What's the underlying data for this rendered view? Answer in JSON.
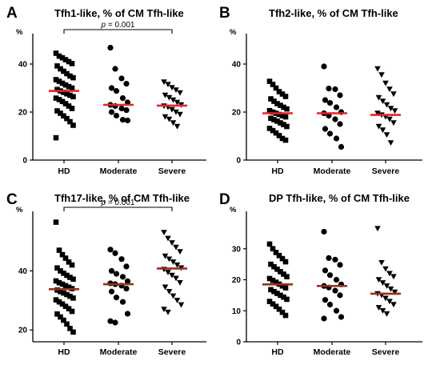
{
  "chart_data": [
    {
      "type": "scatter",
      "panel": "A",
      "title": "Tfh1-like, % of CM Tfh-like",
      "unit": "%",
      "ylim": [
        0,
        50
      ],
      "yticks": [
        "0",
        "20",
        "40"
      ],
      "categories": [
        "HD",
        "Moderate",
        "Severe"
      ],
      "median_color": "#e8242a",
      "significance": {
        "from": "HD",
        "to": "Severe",
        "label_p": "p",
        "label_rest": " = 0.001"
      },
      "series": [
        {
          "category": "HD",
          "marker": "square",
          "median": 28.8,
          "values": [
            44.5,
            43.3,
            42.6,
            41.8,
            41.0,
            40.2,
            39.2,
            38.0,
            37.0,
            36.0,
            35.0,
            34.3,
            33.5,
            32.8,
            32.0,
            31.3,
            30.6,
            30.0,
            29.4,
            28.8,
            28.2,
            27.6,
            27.0,
            26.4,
            25.8,
            25.2,
            24.4,
            23.5,
            22.5,
            21.5,
            20.5,
            19.5,
            18.4,
            17.3,
            16.0,
            14.5,
            9.3
          ]
        },
        {
          "category": "Moderate",
          "marker": "circle",
          "median": 23.0,
          "values": [
            46.8,
            38.0,
            34.0,
            31.8,
            30.0,
            28.8,
            25.8,
            24.0,
            23.0,
            22.5,
            21.5,
            20.8,
            20.0,
            18.5,
            16.8,
            16.5
          ]
        },
        {
          "category": "Severe",
          "marker": "triangle-down",
          "median": 22.7,
          "values": [
            32.5,
            31.5,
            30.2,
            29.2,
            28.0,
            27.0,
            26.0,
            25.0,
            24.0,
            23.0,
            22.5,
            22.0,
            21.0,
            20.0,
            19.0,
            18.0,
            17.0,
            15.5,
            14.0
          ]
        }
      ]
    },
    {
      "type": "scatter",
      "panel": "B",
      "title": "Tfh2-like, % of CM Tfh-like",
      "unit": "%",
      "ylim": [
        0,
        50
      ],
      "yticks": [
        "0",
        "20",
        "40"
      ],
      "categories": [
        "HD",
        "Moderate",
        "Severe"
      ],
      "median_color": "#e8242a",
      "series": [
        {
          "category": "HD",
          "marker": "square",
          "median": 19.5,
          "values": [
            32.8,
            31.5,
            30.0,
            28.5,
            27.5,
            26.5,
            25.5,
            24.5,
            23.5,
            22.8,
            22.0,
            21.3,
            20.6,
            20.0,
            19.5,
            19.0,
            18.5,
            18.0,
            17.4,
            16.8,
            16.2,
            15.5,
            14.8,
            14.0,
            13.2,
            12.3,
            11.3,
            10.2,
            9.0,
            8.3
          ]
        },
        {
          "category": "Moderate",
          "marker": "circle",
          "median": 19.5,
          "values": [
            39.0,
            29.8,
            29.5,
            27.0,
            25.0,
            23.8,
            22.0,
            20.0,
            19.5,
            18.5,
            17.0,
            15.0,
            13.0,
            11.0,
            9.0,
            5.5
          ]
        },
        {
          "category": "Severe",
          "marker": "triangle-down",
          "median": 18.8,
          "values": [
            38.0,
            35.5,
            32.0,
            29.5,
            27.5,
            26.0,
            24.5,
            23.0,
            21.5,
            20.5,
            19.5,
            18.8,
            18.0,
            17.0,
            15.5,
            14.0,
            12.5,
            10.5,
            7.2
          ]
        }
      ]
    },
    {
      "type": "scatter",
      "panel": "C",
      "title": "Tfh17-like, % of CM Tfh-like",
      "unit": "%",
      "ylim": [
        16,
        58
      ],
      "yticks": [
        "20",
        "40"
      ],
      "categories": [
        "HD",
        "Moderate",
        "Severe"
      ],
      "median_color": "#9a2e1f",
      "significance": {
        "from": "HD",
        "to": "Severe",
        "label_p": "p",
        "label_rest": " = 0.001"
      },
      "series": [
        {
          "category": "HD",
          "marker": "square",
          "median": 33.8,
          "values": [
            56.5,
            47.0,
            45.5,
            44.3,
            43.0,
            42.0,
            41.0,
            40.0,
            39.2,
            38.5,
            37.8,
            37.2,
            36.6,
            36.0,
            35.5,
            35.0,
            34.5,
            34.0,
            33.5,
            33.0,
            32.5,
            32.0,
            31.4,
            30.8,
            30.2,
            29.5,
            28.8,
            28.0,
            27.2,
            26.3,
            25.4,
            24.4,
            23.3,
            22.0,
            20.5,
            19.3
          ]
        },
        {
          "category": "Moderate",
          "marker": "circle",
          "median": 35.5,
          "values": [
            47.2,
            46.0,
            44.0,
            41.5,
            40.0,
            39.0,
            38.0,
            36.5,
            35.8,
            35.5,
            35.0,
            34.0,
            33.0,
            31.0,
            29.5,
            25.5,
            23.0,
            22.5
          ]
        },
        {
          "category": "Severe",
          "marker": "triangle-down",
          "median": 40.8,
          "values": [
            53.0,
            51.0,
            49.5,
            48.0,
            46.5,
            45.0,
            44.0,
            43.0,
            42.0,
            41.0,
            40.5,
            39.5,
            38.5,
            37.5,
            36.0,
            34.5,
            33.0,
            31.5,
            30.0,
            28.5,
            27.0,
            26.0
          ]
        }
      ]
    },
    {
      "type": "scatter",
      "panel": "D",
      "title": "DP Tfh-like, % of CM Tfh-like",
      "unit": "%",
      "ylim": [
        0,
        40
      ],
      "yticks": [
        "0",
        "10",
        "20",
        "30"
      ],
      "categories": [
        "HD",
        "Moderate",
        "Severe"
      ],
      "median_color": "#9a2e1f",
      "series": [
        {
          "category": "HD",
          "marker": "square",
          "median": 18.5,
          "values": [
            31.5,
            30.0,
            28.8,
            27.8,
            26.8,
            25.8,
            25.0,
            24.2,
            23.4,
            22.6,
            21.8,
            21.0,
            20.4,
            19.8,
            19.2,
            18.6,
            18.0,
            17.4,
            16.8,
            16.2,
            15.6,
            15.0,
            14.4,
            13.7,
            13.0,
            12.2,
            11.4,
            10.5,
            9.5,
            8.5
          ]
        },
        {
          "category": "Moderate",
          "marker": "circle",
          "median": 18.0,
          "values": [
            35.5,
            27.0,
            26.5,
            24.8,
            23.0,
            21.5,
            20.0,
            18.5,
            18.0,
            17.5,
            16.5,
            15.0,
            13.5,
            12.0,
            10.0,
            8.0,
            7.5
          ]
        },
        {
          "category": "Severe",
          "marker": "triangle-down",
          "median": 15.5,
          "values": [
            36.5,
            25.5,
            23.5,
            22.0,
            21.0,
            20.0,
            19.0,
            18.0,
            17.0,
            16.0,
            15.5,
            15.0,
            14.0,
            13.0,
            12.0,
            11.0,
            10.0,
            9.0
          ]
        }
      ]
    }
  ]
}
